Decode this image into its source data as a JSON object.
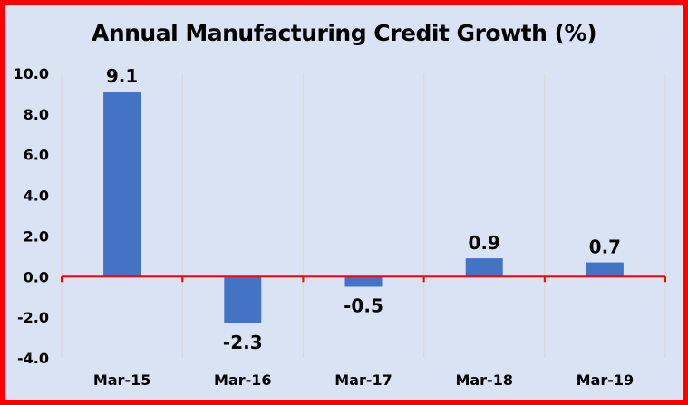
{
  "chart_data": {
    "type": "bar",
    "title": "Annual Manufacturing Credit Growth (%)",
    "categories": [
      "Mar-15",
      "Mar-16",
      "Mar-17",
      "Mar-18",
      "Mar-19"
    ],
    "values": [
      9.1,
      -2.3,
      -0.5,
      0.9,
      0.7
    ],
    "data_labels": [
      "9.1",
      "-2.3",
      "-0.5",
      "0.9",
      "0.7"
    ],
    "ylim": [
      -4,
      10
    ],
    "yticks": [
      "10.0",
      "8.0",
      "6.0",
      "4.0",
      "2.0",
      "0.0",
      "-2.0",
      "-4.0"
    ],
    "ytick_values": [
      10,
      8,
      6,
      4,
      2,
      0,
      -2,
      -4
    ],
    "xlabel": "",
    "ylabel": "",
    "grid": "vertical",
    "legend": "none",
    "colors": {
      "bar": "#4472c4",
      "axis": "#ff0000",
      "background": "#dae3f3",
      "border": "#ff0000",
      "grid": "#d9d9d9"
    }
  }
}
